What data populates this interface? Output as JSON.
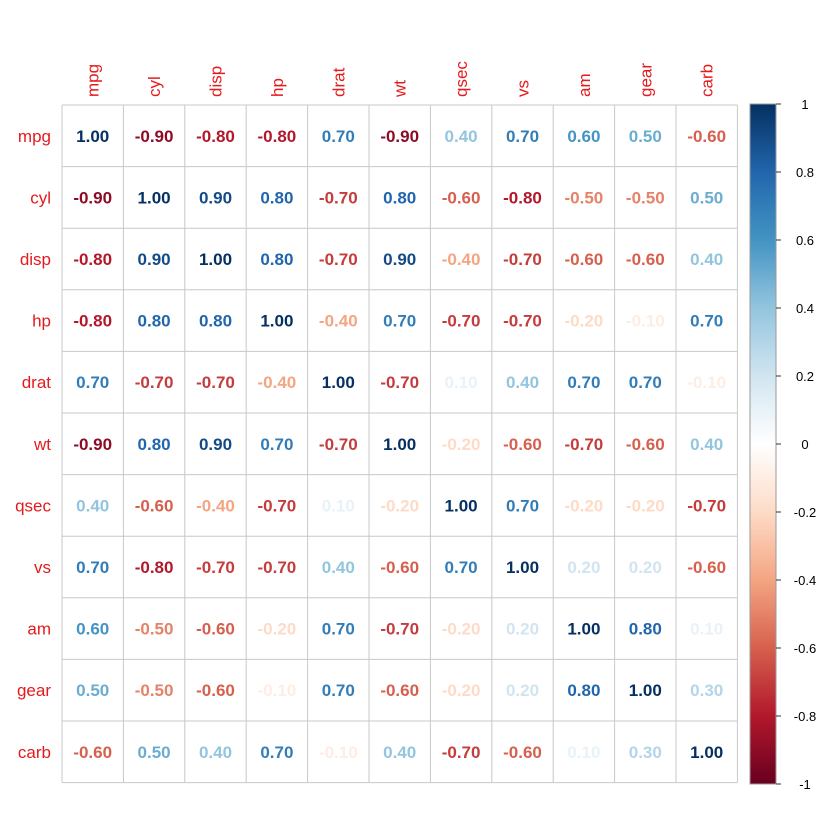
{
  "chart_data": {
    "type": "heatmap",
    "title": "",
    "variables": [
      "mpg",
      "cyl",
      "disp",
      "hp",
      "drat",
      "wt",
      "qsec",
      "vs",
      "am",
      "gear",
      "carb"
    ],
    "matrix": [
      [
        1.0,
        -0.9,
        -0.8,
        -0.8,
        0.7,
        -0.9,
        0.4,
        0.7,
        0.6,
        0.5,
        -0.6
      ],
      [
        -0.9,
        1.0,
        0.9,
        0.8,
        -0.7,
        0.8,
        -0.6,
        -0.8,
        -0.5,
        -0.5,
        0.5
      ],
      [
        -0.8,
        0.9,
        1.0,
        0.8,
        -0.7,
        0.9,
        -0.4,
        -0.7,
        -0.6,
        -0.6,
        0.4
      ],
      [
        -0.8,
        0.8,
        0.8,
        1.0,
        -0.4,
        0.7,
        -0.7,
        -0.7,
        -0.2,
        -0.1,
        0.7
      ],
      [
        0.7,
        -0.7,
        -0.7,
        -0.4,
        1.0,
        -0.7,
        0.1,
        0.4,
        0.7,
        0.7,
        -0.1
      ],
      [
        -0.9,
        0.8,
        0.9,
        0.7,
        -0.7,
        1.0,
        -0.2,
        -0.6,
        -0.7,
        -0.6,
        0.4
      ],
      [
        0.4,
        -0.6,
        -0.4,
        -0.7,
        0.1,
        -0.2,
        1.0,
        0.7,
        -0.2,
        -0.2,
        -0.7
      ],
      [
        0.7,
        -0.8,
        -0.7,
        -0.7,
        0.4,
        -0.6,
        0.7,
        1.0,
        0.2,
        0.2,
        -0.6
      ],
      [
        0.6,
        -0.5,
        -0.6,
        -0.2,
        0.7,
        -0.7,
        -0.2,
        0.2,
        1.0,
        0.8,
        0.1
      ],
      [
        0.5,
        -0.5,
        -0.6,
        -0.1,
        0.7,
        -0.6,
        -0.2,
        0.2,
        0.8,
        1.0,
        0.3
      ],
      [
        -0.6,
        0.5,
        0.4,
        0.7,
        -0.1,
        0.4,
        -0.7,
        -0.6,
        0.1,
        0.3,
        1.0
      ]
    ],
    "value_range": [
      -1,
      1
    ],
    "colorbar": {
      "ticks": [
        "1",
        "0.8",
        "0.6",
        "0.4",
        "0.2",
        "0",
        "-0.2",
        "-0.4",
        "-0.6",
        "-0.8",
        "-1"
      ],
      "tick_values": [
        1,
        0.8,
        0.6,
        0.4,
        0.2,
        0,
        -0.2,
        -0.4,
        -0.6,
        -0.8,
        -1
      ],
      "position": "right"
    },
    "label_color": "#E41A1C",
    "grid": true,
    "grid_color": "#C8C8C8",
    "palette": [
      "#67001F",
      "#B2182B",
      "#D6604D",
      "#F4A582",
      "#FDDBC7",
      "#FFFFFF",
      "#D1E5F0",
      "#92C5DE",
      "#4393C3",
      "#2166AC",
      "#053061"
    ]
  }
}
